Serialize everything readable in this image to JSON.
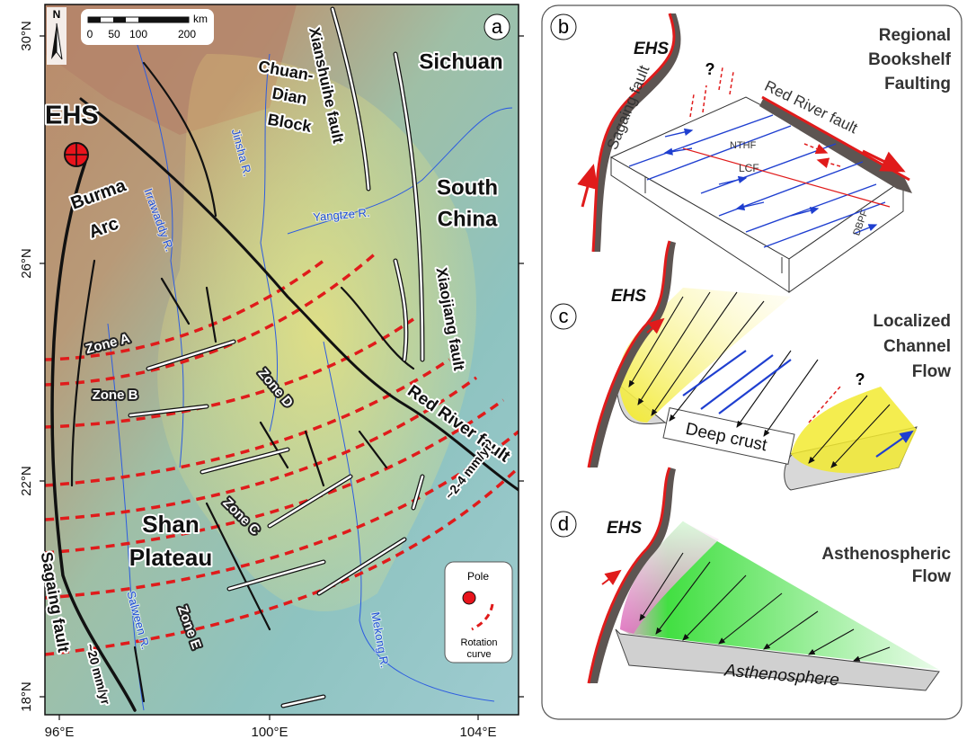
{
  "map": {
    "panel_label": "a",
    "lat_labels": [
      "30°N",
      "26°N",
      "22°N",
      "18°N"
    ],
    "lon_labels": [
      "96°E",
      "100°E",
      "104°E"
    ],
    "north": "N",
    "scale_unit": "km",
    "scale_ticks": [
      "0",
      "50",
      "100",
      "200"
    ],
    "regions": {
      "ehs": "EHS",
      "burma_arc": [
        "Burma",
        "Arc"
      ],
      "sichuan": "Sichuan",
      "south_china": [
        "South",
        "China"
      ],
      "chuan_dian": [
        "Chuan-",
        "Dian",
        "Block"
      ],
      "shan": [
        "Shan",
        "Plateau"
      ]
    },
    "faults": {
      "xianshuihe": "Xianshuihe fault",
      "xiaojiang": "Xiaojiang fault",
      "red_river": "Red River fault",
      "red_river_rate": "~2-4 mm/yr",
      "sagaing": "Sagaing fault",
      "sagaing_rate": "~20 mm/yr"
    },
    "rivers": {
      "jinsha": "Jinsha R.",
      "irrawaddy": "Irrawaddy R.",
      "yangtze": "Yangtze R.",
      "salween": "Salween R.",
      "mekong": "Mekong R."
    },
    "zones": [
      "Zone A",
      "Zone B",
      "Zone C",
      "Zone D",
      "Zone E"
    ],
    "legend": {
      "pole": "Pole",
      "rotation": [
        "Rotation",
        "curve"
      ]
    }
  },
  "panel_b": {
    "panel_label": "b",
    "title": [
      "Regional",
      "Bookshelf",
      "Faulting"
    ],
    "ehs": "EHS",
    "sagaing": "Sagaing fault",
    "red_river": "Red River fault",
    "question": "?",
    "nthf": "NTHF",
    "lcf": "LCF",
    "dbpf": "DBPF"
  },
  "panel_c": {
    "panel_label": "c",
    "title": [
      "Localized",
      "Channel",
      "Flow"
    ],
    "ehs": "EHS",
    "deep_crust": "Deep crust",
    "question": "?"
  },
  "panel_d": {
    "panel_label": "d",
    "title": [
      "Asthenospheric",
      "Flow"
    ],
    "ehs": "EHS",
    "asthenosphere": "Asthenosphere"
  }
}
